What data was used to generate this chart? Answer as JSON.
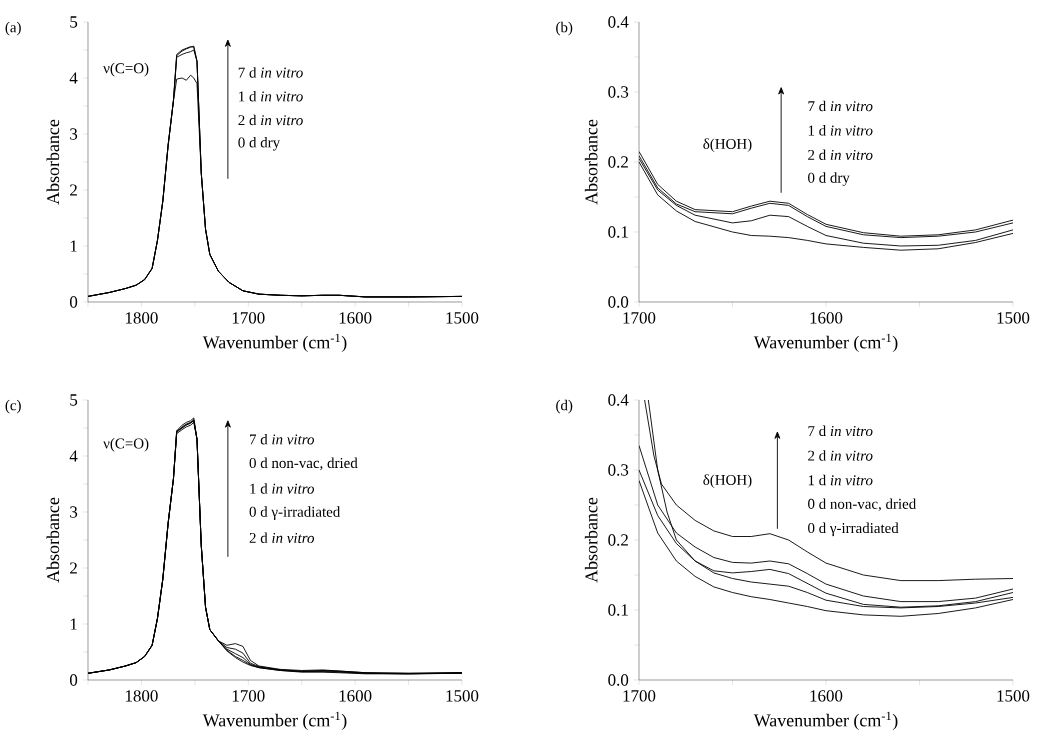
{
  "chart_data": [
    {
      "type": "line",
      "title": "(a)",
      "xlabel": "Wavenumber (cm$^{-1}$)",
      "ylabel": "Absorbance",
      "xlim": [
        1850,
        1500
      ],
      "ylim": [
        0,
        5
      ],
      "xticks": [
        {
          "value": 1850,
          "label": null
        },
        1800,
        {
          "value": 1750,
          "label": null
        },
        1700,
        {
          "value": 1650,
          "label": null
        },
        1600,
        {
          "value": 1550,
          "label": null
        },
        1500
      ],
      "yticks": [
        0,
        {
          "value": 0.5,
          "label": null
        },
        1,
        {
          "value": 1.5,
          "label": null
        },
        2,
        {
          "value": 2.5,
          "label": null
        },
        3,
        {
          "value": 3.5,
          "label": null
        },
        4,
        {
          "value": 4.5,
          "label": null
        },
        5
      ],
      "annotations": [
        "ν(C=O)",
        "7 d *in vitro*",
        "1 d *in vitro*",
        "2 d *in vitro*",
        "0 d dry"
      ],
      "x": [
        1850,
        1830,
        1815,
        1805,
        1797,
        1790,
        1785,
        1780,
        1775,
        1770,
        1767,
        1762,
        1758,
        1754,
        1751,
        1748,
        1744,
        1740,
        1736,
        1728,
        1718,
        1705,
        1690,
        1670,
        1650,
        1630,
        1615,
        1590,
        1550,
        1500
      ],
      "series": [
        {
          "color": "#000000",
          "values": [
            0.1,
            0.17,
            0.24,
            0.3,
            0.4,
            0.6,
            1.1,
            1.8,
            2.8,
            3.6,
            4.4,
            4.48,
            4.52,
            4.55,
            4.57,
            4.3,
            2.3,
            1.3,
            0.85,
            0.55,
            0.35,
            0.2,
            0.14,
            0.12,
            0.11,
            0.12,
            0.12,
            0.09,
            0.09,
            0.1
          ]
        },
        {
          "color": "#000000",
          "values": [
            0.1,
            0.17,
            0.24,
            0.3,
            0.4,
            0.6,
            1.1,
            1.8,
            2.8,
            3.6,
            4.37,
            4.42,
            4.45,
            4.47,
            4.5,
            4.3,
            2.3,
            1.3,
            0.85,
            0.55,
            0.35,
            0.2,
            0.14,
            0.12,
            0.11,
            0.12,
            0.12,
            0.09,
            0.09,
            0.1
          ]
        },
        {
          "color": "#000000",
          "values": [
            0.1,
            0.17,
            0.24,
            0.3,
            0.4,
            0.6,
            1.1,
            1.8,
            2.8,
            3.6,
            3.98,
            4.0,
            3.96,
            4.05,
            4.0,
            3.9,
            2.3,
            1.3,
            0.85,
            0.55,
            0.35,
            0.2,
            0.14,
            0.12,
            0.11,
            0.12,
            0.12,
            0.09,
            0.09,
            0.1
          ]
        },
        {
          "color": "#000000",
          "values": [
            0.1,
            0.17,
            0.24,
            0.3,
            0.4,
            0.6,
            1.1,
            1.8,
            2.8,
            3.6,
            4.42,
            4.5,
            4.53,
            4.56,
            4.55,
            4.3,
            2.3,
            1.3,
            0.85,
            0.55,
            0.35,
            0.2,
            0.14,
            0.12,
            0.11,
            0.12,
            0.12,
            0.09,
            0.09,
            0.1
          ]
        }
      ]
    },
    {
      "type": "line",
      "title": "(b)",
      "xlabel": "Wavenumber (cm$^{-1}$)",
      "ylabel": "Absorbance",
      "xlim": [
        1700,
        1500
      ],
      "ylim": [
        0,
        0.4
      ],
      "xticks": [
        1700,
        {
          "value": 1650,
          "label": null
        },
        1600,
        {
          "value": 1550,
          "label": null
        },
        1500
      ],
      "yticks": [
        {
          "value": 0,
          "label": "0.0"
        },
        {
          "value": 0.05,
          "label": null
        },
        0.1,
        {
          "value": 0.15,
          "label": null
        },
        0.2,
        {
          "value": 0.25,
          "label": null
        },
        0.3,
        {
          "value": 0.35,
          "label": null
        },
        0.4
      ],
      "annotations": [
        "δ(HOH)",
        "7 d *in vitro*",
        "1 d *in vitro*",
        "2 d *in vitro*",
        "0 d dry"
      ],
      "x": [
        1700,
        1690,
        1680,
        1670,
        1650,
        1640,
        1630,
        1620,
        1610,
        1600,
        1580,
        1560,
        1540,
        1520,
        1500
      ],
      "series": [
        {
          "color": "#000000",
          "values": [
            0.215,
            0.168,
            0.144,
            0.132,
            0.129,
            0.137,
            0.144,
            0.141,
            0.125,
            0.111,
            0.099,
            0.094,
            0.096,
            0.103,
            0.117
          ]
        },
        {
          "color": "#000000",
          "values": [
            0.209,
            0.163,
            0.14,
            0.129,
            0.126,
            0.134,
            0.141,
            0.138,
            0.122,
            0.108,
            0.096,
            0.092,
            0.094,
            0.1,
            0.113
          ]
        },
        {
          "color": "#000000",
          "values": [
            0.205,
            0.16,
            0.138,
            0.124,
            0.113,
            0.116,
            0.124,
            0.122,
            0.108,
            0.095,
            0.084,
            0.08,
            0.081,
            0.088,
            0.103
          ]
        },
        {
          "color": "#000000",
          "values": [
            0.2,
            0.153,
            0.13,
            0.115,
            0.1,
            0.095,
            0.094,
            0.092,
            0.088,
            0.083,
            0.078,
            0.074,
            0.076,
            0.085,
            0.098
          ]
        }
      ]
    },
    {
      "type": "line",
      "title": "(c)",
      "xlabel": "Wavenumber (cm$^{-1}$)",
      "ylabel": "Absorbance",
      "xlim": [
        1850,
        1500
      ],
      "ylim": [
        0,
        5
      ],
      "xticks": [
        {
          "value": 1850,
          "label": null
        },
        1800,
        {
          "value": 1750,
          "label": null
        },
        1700,
        {
          "value": 1650,
          "label": null
        },
        1600,
        {
          "value": 1550,
          "label": null
        },
        1500
      ],
      "yticks": [
        0,
        {
          "value": 0.5,
          "label": null
        },
        1,
        {
          "value": 1.5,
          "label": null
        },
        2,
        {
          "value": 2.5,
          "label": null
        },
        3,
        {
          "value": 3.5,
          "label": null
        },
        4,
        {
          "value": 4.5,
          "label": null
        },
        5
      ],
      "annotations": [
        "ν(C=O)",
        "7 d *in vitro*",
        "0 d non-vac, dried",
        "1 d *in vitro*",
        "0 d γ-irradiated",
        "2 d *in vitro*"
      ],
      "x": [
        1850,
        1830,
        1815,
        1805,
        1797,
        1790,
        1785,
        1780,
        1775,
        1770,
        1767,
        1762,
        1758,
        1754,
        1751,
        1748,
        1744,
        1740,
        1736,
        1728,
        1720,
        1712,
        1705,
        1698,
        1690,
        1670,
        1650,
        1630,
        1615,
        1590,
        1550,
        1500
      ],
      "series": [
        {
          "color": "#000000",
          "values": [
            0.12,
            0.18,
            0.25,
            0.31,
            0.42,
            0.62,
            1.1,
            1.8,
            2.8,
            3.6,
            4.45,
            4.55,
            4.6,
            4.63,
            4.68,
            4.3,
            2.4,
            1.3,
            0.9,
            0.7,
            0.62,
            0.65,
            0.6,
            0.35,
            0.25,
            0.19,
            0.17,
            0.18,
            0.16,
            0.13,
            0.12,
            0.13
          ]
        },
        {
          "color": "#000000",
          "values": [
            0.12,
            0.18,
            0.25,
            0.31,
            0.42,
            0.62,
            1.1,
            1.8,
            2.8,
            3.6,
            4.42,
            4.5,
            4.55,
            4.6,
            4.62,
            4.3,
            2.4,
            1.3,
            0.9,
            0.7,
            0.58,
            0.55,
            0.48,
            0.3,
            0.24,
            0.18,
            0.16,
            0.17,
            0.16,
            0.13,
            0.12,
            0.13
          ]
        },
        {
          "color": "#000000",
          "values": [
            0.12,
            0.18,
            0.25,
            0.31,
            0.42,
            0.62,
            1.1,
            1.8,
            2.8,
            3.6,
            4.4,
            4.47,
            4.52,
            4.55,
            4.6,
            4.3,
            2.4,
            1.3,
            0.9,
            0.7,
            0.55,
            0.47,
            0.4,
            0.28,
            0.23,
            0.18,
            0.15,
            0.15,
            0.14,
            0.12,
            0.11,
            0.13
          ]
        },
        {
          "color": "#000000",
          "values": [
            0.12,
            0.18,
            0.25,
            0.31,
            0.42,
            0.62,
            1.1,
            1.8,
            2.8,
            3.6,
            4.43,
            4.52,
            4.57,
            4.6,
            4.65,
            4.3,
            2.4,
            1.3,
            0.9,
            0.7,
            0.53,
            0.42,
            0.35,
            0.27,
            0.22,
            0.17,
            0.15,
            0.16,
            0.15,
            0.12,
            0.11,
            0.12
          ]
        },
        {
          "color": "#000000",
          "values": [
            0.12,
            0.18,
            0.25,
            0.31,
            0.42,
            0.62,
            1.1,
            1.8,
            2.8,
            3.6,
            4.45,
            4.5,
            4.56,
            4.58,
            4.64,
            4.3,
            2.4,
            1.3,
            0.9,
            0.7,
            0.52,
            0.4,
            0.32,
            0.26,
            0.22,
            0.17,
            0.14,
            0.14,
            0.13,
            0.11,
            0.11,
            0.12
          ]
        }
      ]
    },
    {
      "type": "line",
      "title": "(d)",
      "xlabel": "Wavenumber (cm$^{-1}$)",
      "ylabel": "Absorbance",
      "xlim": [
        1700,
        1500
      ],
      "ylim": [
        0,
        0.4
      ],
      "xticks": [
        1700,
        {
          "value": 1650,
          "label": null
        },
        1600,
        {
          "value": 1550,
          "label": null
        },
        1500
      ],
      "yticks": [
        {
          "value": 0,
          "label": "0.0"
        },
        {
          "value": 0.05,
          "label": null
        },
        0.1,
        {
          "value": 0.15,
          "label": null
        },
        0.2,
        {
          "value": 0.25,
          "label": null
        },
        0.3,
        {
          "value": 0.35,
          "label": null
        },
        0.4
      ],
      "annotations": [
        "δ(HOH)",
        "7 d *in vitro*",
        "2 d *in vitro*",
        "1 d *in vitro*",
        "0 d non-vac, dried",
        "0 d γ-irradiated"
      ],
      "series": [
        {
          "color": "#000000",
          "x": [
            1697,
            1692,
            1688,
            1680,
            1670,
            1660,
            1650,
            1640,
            1630,
            1620,
            1610,
            1600,
            1580,
            1560,
            1540,
            1520,
            1500
          ],
          "values": [
            0.4,
            0.32,
            0.28,
            0.25,
            0.228,
            0.213,
            0.205,
            0.205,
            0.209,
            0.2,
            0.183,
            0.167,
            0.15,
            0.142,
            0.142,
            0.144,
            0.145
          ]
        },
        {
          "color": "#000000",
          "x": [
            1700,
            1690,
            1680,
            1670,
            1660,
            1650,
            1640,
            1630,
            1620,
            1610,
            1600,
            1580,
            1560,
            1540,
            1520,
            1500
          ],
          "values": [
            0.335,
            0.25,
            0.21,
            0.19,
            0.175,
            0.168,
            0.167,
            0.17,
            0.166,
            0.152,
            0.137,
            0.12,
            0.112,
            0.112,
            0.117,
            0.13
          ]
        },
        {
          "color": "#000000",
          "x": [
            1695,
            1690,
            1685,
            1680,
            1670,
            1660,
            1650,
            1640,
            1630,
            1620,
            1610,
            1600,
            1580,
            1560,
            1540,
            1520,
            1500
          ],
          "values": [
            0.4,
            0.3,
            0.24,
            0.2,
            0.17,
            0.156,
            0.153,
            0.155,
            0.158,
            0.152,
            0.138,
            0.124,
            0.108,
            0.104,
            0.106,
            0.112,
            0.125
          ]
        },
        {
          "color": "#000000",
          "x": [
            1700,
            1690,
            1680,
            1670,
            1660,
            1650,
            1640,
            1630,
            1620,
            1610,
            1600,
            1580,
            1560,
            1540,
            1520,
            1500
          ],
          "values": [
            0.3,
            0.235,
            0.195,
            0.17,
            0.153,
            0.145,
            0.14,
            0.137,
            0.134,
            0.125,
            0.114,
            0.105,
            0.103,
            0.105,
            0.11,
            0.118
          ]
        },
        {
          "color": "#000000",
          "x": [
            1700,
            1690,
            1680,
            1670,
            1660,
            1650,
            1640,
            1630,
            1620,
            1610,
            1600,
            1580,
            1560,
            1540,
            1520,
            1500
          ],
          "values": [
            0.285,
            0.21,
            0.17,
            0.148,
            0.133,
            0.125,
            0.119,
            0.115,
            0.11,
            0.105,
            0.099,
            0.093,
            0.091,
            0.095,
            0.103,
            0.115
          ]
        }
      ]
    }
  ]
}
